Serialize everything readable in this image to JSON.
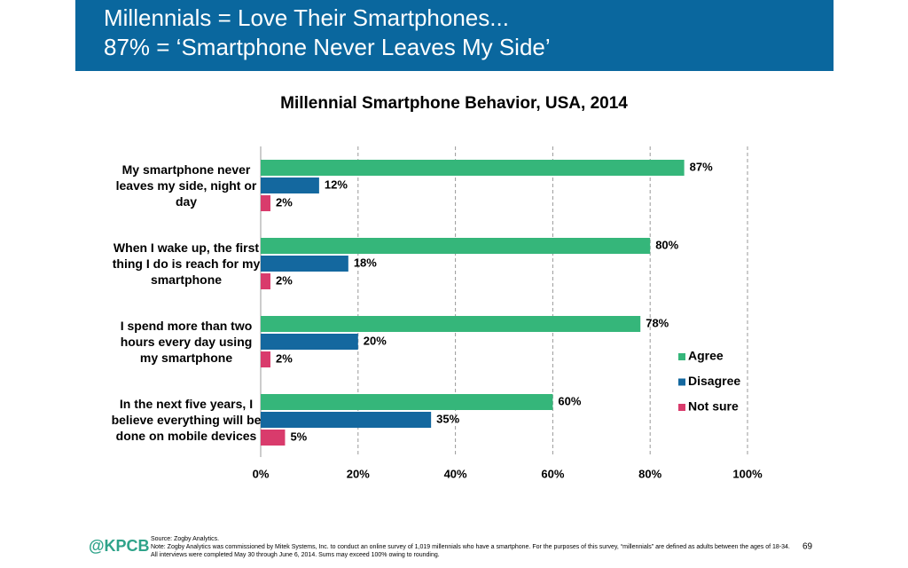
{
  "header": {
    "title_lines": [
      "Millennials = Love Their Smartphones...",
      "87% = ‘Smartphone Never Leaves My Side’"
    ]
  },
  "chart_data": {
    "type": "bar",
    "orientation": "horizontal",
    "title": "Millennial Smartphone Behavior, USA, 2014",
    "categories": [
      "My smartphone never leaves my side, night or day",
      "When I wake up, the first thing I do is reach for my smartphone",
      "I spend more than two hours every day using my smartphone",
      "In the next five years, I believe everything will be done on mobile devices"
    ],
    "series": [
      {
        "name": "Agree",
        "color": "#35b67a",
        "values": [
          87,
          80,
          78,
          60
        ],
        "value_labels": [
          "87%",
          "80%",
          "78%",
          "60%"
        ]
      },
      {
        "name": "Disagree",
        "color": "#14689f",
        "values": [
          12,
          18,
          20,
          35
        ],
        "value_labels": [
          "12%",
          "18%",
          "20%",
          "35%"
        ]
      },
      {
        "name": "Not sure",
        "color": "#d93b6c",
        "values": [
          2,
          2,
          2,
          5
        ],
        "value_labels": [
          "2%",
          "2%",
          "2%",
          "5%"
        ]
      }
    ],
    "xlim": [
      0,
      100
    ],
    "xticks": [
      {
        "value": 0,
        "label": "0%"
      },
      {
        "value": 20,
        "label": "20%"
      },
      {
        "value": 40,
        "label": "40%"
      },
      {
        "value": 60,
        "label": "60%"
      },
      {
        "value": 80,
        "label": "80%"
      },
      {
        "value": 100,
        "label": "100%"
      }
    ],
    "grid": true,
    "legend": "right"
  },
  "footer": {
    "brand": "@KPCB",
    "source": "Source: Zogby Analytics.",
    "note": "Note: Zogby Analytics was commissioned by Mitek Systems, Inc. to conduct an online survey of 1,019 millennials who have a smartphone. For the purposes of this survey, “millennials” are defined as adults between the ages of 18-34. All interviews were completed May 30 through June 6, 2014. Sums may exceed 100% owing to rounding.",
    "page": "69"
  }
}
